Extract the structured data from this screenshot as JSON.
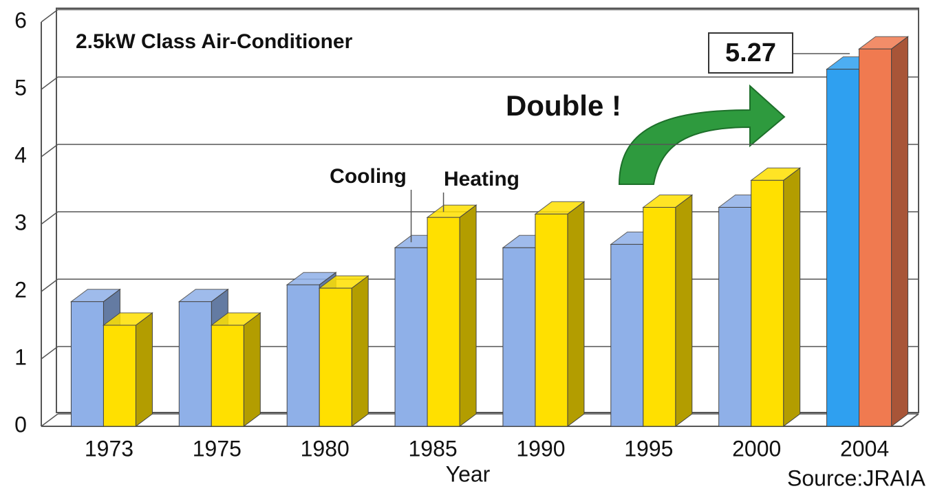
{
  "chart_data": {
    "type": "bar3d",
    "title": "2.5kW Class Air-Conditioner",
    "x_label": "Year",
    "source": "Source:JRAIA",
    "annotations": [
      "Double !",
      "5.27"
    ],
    "categories": [
      "1973",
      "1975",
      "1980",
      "1985",
      "1990",
      "1995",
      "2000",
      "2004"
    ],
    "series": [
      {
        "name": "Cooling",
        "color": "#8fb0e8",
        "colors": [
          "#8fb0e8",
          "#8fb0e8",
          "#8fb0e8",
          "#8fb0e8",
          "#8fb0e8",
          "#8fb0e8",
          "#8fb0e8",
          "#2fa0f0"
        ],
        "values": [
          1.85,
          1.85,
          2.1,
          2.65,
          2.65,
          2.7,
          3.25,
          5.3
        ]
      },
      {
        "name": "Heating",
        "color": "#ffe000",
        "colors": [
          "#ffe000",
          "#ffe000",
          "#ffe000",
          "#ffe000",
          "#ffe000",
          "#ffe000",
          "#ffe000",
          "#f07a50"
        ],
        "values": [
          1.5,
          1.5,
          2.05,
          3.1,
          3.15,
          3.25,
          3.65,
          5.6
        ]
      }
    ],
    "ylim": [
      0,
      6
    ],
    "yticks": [
      0,
      1,
      2,
      3,
      4,
      5,
      6
    ],
    "grid": true
  }
}
